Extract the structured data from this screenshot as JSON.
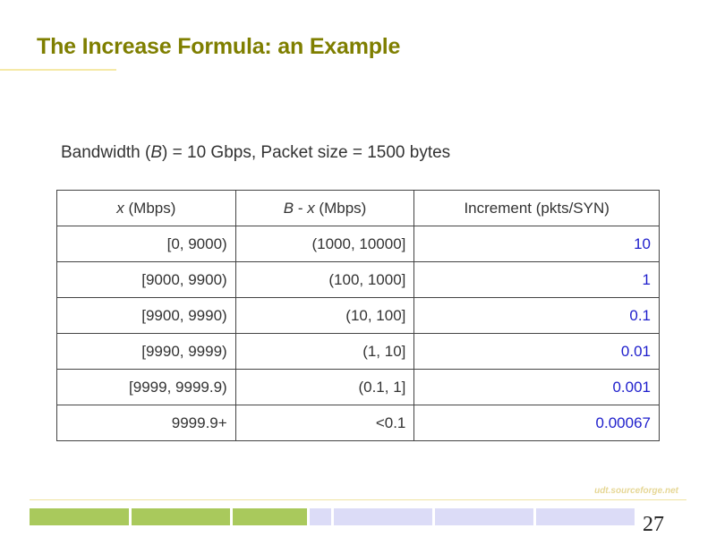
{
  "slide": {
    "title": "The Increase Formula: an Example",
    "subtitle": {
      "part1": "Bandwidth (",
      "var": "B",
      "part2": ") = 10 Gbps, Packet size = 1500 bytes"
    },
    "table": {
      "headers": {
        "col1_var": "x",
        "col1_rest": " (Mbps)",
        "col2_var1": "B",
        "col2_mid": " - ",
        "col2_var2": "x",
        "col2_rest": " (Mbps)",
        "col3": "Increment (pkts/SYN)"
      },
      "rows": [
        {
          "x": "[0, 9000)",
          "bx": "(1000, 10000]",
          "inc": "10"
        },
        {
          "x": "[9000, 9900)",
          "bx": "(100, 1000]",
          "inc": "1"
        },
        {
          "x": "[9900, 9990)",
          "bx": "(10, 100]",
          "inc": "0.1"
        },
        {
          "x": "[9990, 9999)",
          "bx": "(1, 10]",
          "inc": "0.01"
        },
        {
          "x": "[9999, 9999.9)",
          "bx": "(0.1, 1]",
          "inc": "0.001"
        },
        {
          "x": "9999.9+",
          "bx": "<0.1",
          "inc": "0.00067"
        }
      ]
    },
    "footer": {
      "url": "udt.sourceforge.net",
      "page_number": "27"
    },
    "colors": {
      "title": "#7f7f00",
      "increment_values": "#1f1fcc",
      "bar_green": "#a9c95c",
      "bar_blue": "#dcdcf7"
    }
  }
}
